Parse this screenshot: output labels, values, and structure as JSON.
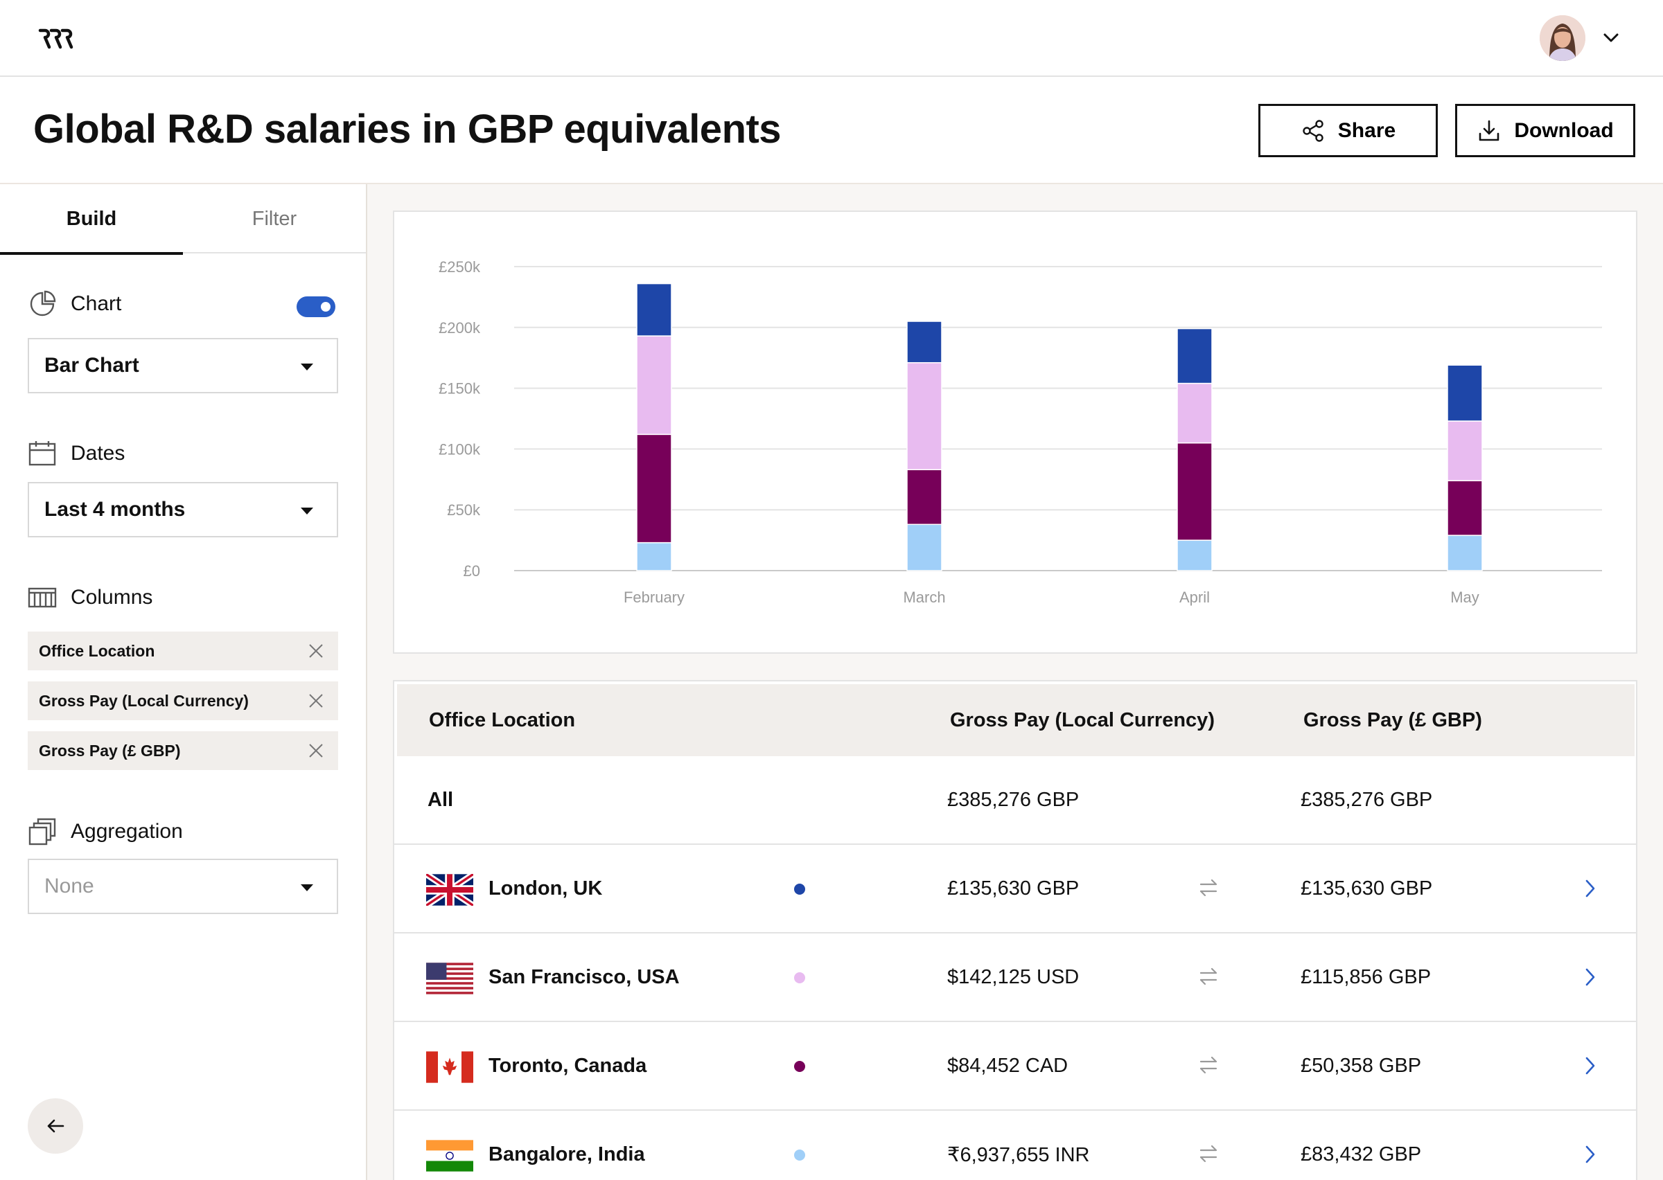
{
  "header": {
    "title": "Global R&D salaries in GBP equivalents",
    "share_label": "Share",
    "download_label": "Download"
  },
  "sidebar": {
    "tabs": [
      {
        "label": "Build"
      },
      {
        "label": "Filter"
      }
    ],
    "chart": {
      "label": "Chart",
      "enabled": true,
      "selected": "Bar Chart"
    },
    "dates": {
      "label": "Dates",
      "selected": "Last 4 months"
    },
    "columns": {
      "label": "Columns",
      "items": [
        "Office Location",
        "Gross Pay (Local Currency)",
        "Gross Pay (£ GBP)"
      ]
    },
    "aggregation": {
      "label": "Aggregation",
      "selected": "None"
    }
  },
  "chart_data": {
    "type": "bar",
    "stacked": true,
    "categories": [
      "February",
      "March",
      "April",
      "May"
    ],
    "y_tick_labels": [
      "£250k",
      "£200k",
      "£150k",
      "£100k",
      "£50k",
      "£0"
    ],
    "ylim": [
      0,
      250
    ],
    "grid": true,
    "series": [
      {
        "color": "#a0cff8",
        "values": [
          23,
          38,
          25,
          29
        ]
      },
      {
        "color": "#770059",
        "values": [
          89,
          45,
          80,
          45
        ]
      },
      {
        "color": "#e8bbf0",
        "values": [
          81,
          88,
          49,
          49
        ]
      },
      {
        "color": "#1e46a8",
        "values": [
          43,
          34,
          45,
          46
        ]
      }
    ]
  },
  "table": {
    "headers": [
      "Office Location",
      "Gross Pay (Local Currency)",
      "Gross Pay (£ GBP)"
    ],
    "summary": {
      "location": "All",
      "local": "£385,276 GBP",
      "gbp": "£385,276 GBP"
    },
    "rows": [
      {
        "flag": "uk-flag-icon",
        "location": "London, UK",
        "color": "#1e46a8",
        "local": "£135,630 GBP",
        "gbp": "£135,630 GBP"
      },
      {
        "flag": "us-flag-icon",
        "location": "San Francisco, USA",
        "color": "#e8bbf0",
        "local": "$142,125 USD",
        "gbp": "£115,856 GBP"
      },
      {
        "flag": "canada-flag-icon",
        "location": "Toronto, Canada",
        "color": "#770059",
        "local": "$84,452 CAD",
        "gbp": "£50,358 GBP"
      },
      {
        "flag": "india-flag-icon",
        "location": "Bangalore, India",
        "color": "#a0cff8",
        "local": "₹6,937,655 INR",
        "gbp": "£83,432 GBP"
      }
    ]
  }
}
